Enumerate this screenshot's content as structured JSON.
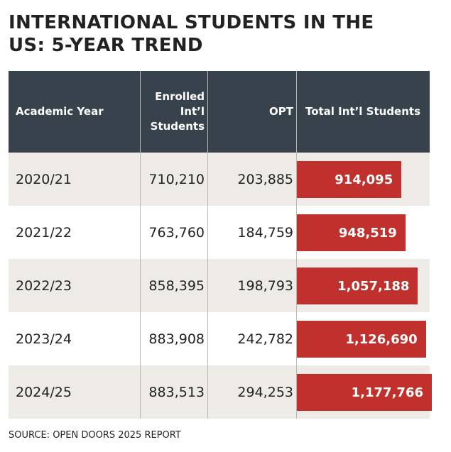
{
  "header": {
    "title": "INTERNATIONAL STUDENTS IN THE US: 5-YEAR TREND"
  },
  "table": {
    "columns": [
      "Academic Year",
      "Enrolled Int’l Students",
      "OPT",
      "Total Int’l Students"
    ],
    "rows": [
      [
        "2020/21",
        "710,210",
        "203,885"
      ],
      [
        "2021/22",
        "763,760",
        "184,759"
      ],
      [
        "2022/23",
        "858,395",
        "198,793"
      ],
      [
        "2023/24",
        "883,908",
        "242,782"
      ],
      [
        "2024/25",
        "883,513",
        "294,253"
      ]
    ],
    "totals": {
      "values": [
        914095,
        948519,
        1057188,
        1126690,
        1177766
      ],
      "value_labels": [
        "914,095",
        "948,519",
        "1,057,188",
        "1,126,690",
        "1,177,766"
      ],
      "color": "#c0302d"
    }
  },
  "footer": {
    "source": "SOURCE: OPEN DOORS 2025 REPORT"
  }
}
